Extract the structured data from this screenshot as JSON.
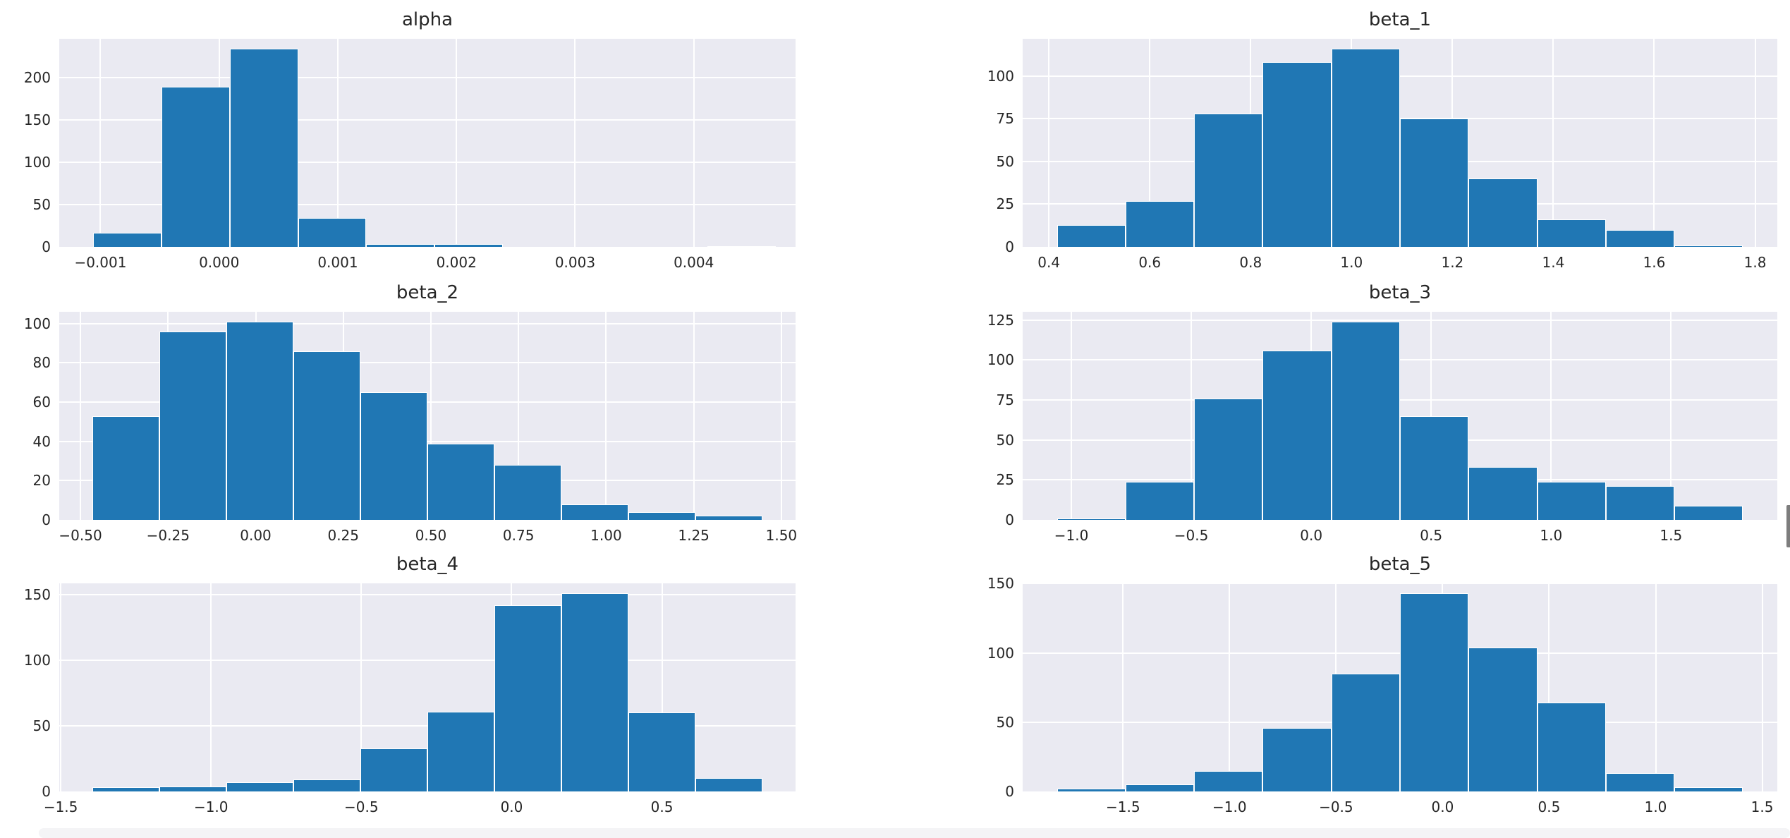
{
  "figure": {
    "page_background": "#ffffff",
    "plot_background": "#eaeaf2",
    "grid_color": "#ffffff",
    "bar_color": "#2077b4",
    "bar_edge_color": "#ffffff",
    "text_color": "#262626"
  },
  "scrollbar": {
    "thumb_color": "#7d7d7d",
    "bottom_strip_color": "#f4f4f6"
  },
  "chart_data": [
    {
      "type": "bar",
      "subtype": "histogram",
      "title": "alpha",
      "bin_start": -0.00106,
      "bin_width": 0.000575,
      "values": [
        17,
        189,
        234,
        34,
        3,
        3,
        0,
        0,
        0,
        1
      ],
      "xlim": [
        -0.0013475,
        0.0048575
      ],
      "ylim": [
        0,
        245.7
      ],
      "xticks": {
        "values": [
          -0.001,
          0.0,
          0.001,
          0.002,
          0.003,
          0.004
        ],
        "labels": [
          "−0.001",
          "0.000",
          "0.001",
          "0.002",
          "0.003",
          "0.004"
        ]
      },
      "yticks": {
        "values": [
          0,
          50,
          100,
          150,
          200
        ],
        "labels": [
          "0",
          "50",
          "100",
          "150",
          "200"
        ]
      },
      "grid": true
    },
    {
      "type": "bar",
      "subtype": "histogram",
      "title": "beta_1",
      "bin_start": 0.416,
      "bin_width": 0.136,
      "values": [
        13,
        27,
        78,
        108,
        116,
        75,
        40,
        16,
        10,
        1
      ],
      "xlim": [
        0.348,
        1.844
      ],
      "ylim": [
        0,
        121.8
      ],
      "xticks": {
        "values": [
          0.4,
          0.6,
          0.8,
          1.0,
          1.2,
          1.4,
          1.6,
          1.8
        ],
        "labels": [
          "0.4",
          "0.6",
          "0.8",
          "1.0",
          "1.2",
          "1.4",
          "1.6",
          "1.8"
        ]
      },
      "yticks": {
        "values": [
          0,
          25,
          50,
          75,
          100
        ],
        "labels": [
          "0",
          "25",
          "50",
          "75",
          "100"
        ]
      },
      "grid": true
    },
    {
      "type": "bar",
      "subtype": "histogram",
      "title": "beta_2",
      "bin_start": -0.465,
      "bin_width": 0.191,
      "values": [
        53,
        96,
        101,
        86,
        65,
        39,
        28,
        8,
        4,
        2
      ],
      "xlim": [
        -0.5605,
        1.5405
      ],
      "ylim": [
        0,
        106.05
      ],
      "xticks": {
        "values": [
          -0.5,
          -0.25,
          0.0,
          0.25,
          0.5,
          0.75,
          1.0,
          1.25,
          1.5
        ],
        "labels": [
          "−0.50",
          "−0.25",
          "0.00",
          "0.25",
          "0.50",
          "0.75",
          "1.00",
          "1.25",
          "1.50"
        ]
      },
      "yticks": {
        "values": [
          0,
          20,
          40,
          60,
          80,
          100
        ],
        "labels": [
          "0",
          "20",
          "40",
          "60",
          "80",
          "100"
        ]
      },
      "grid": true
    },
    {
      "type": "bar",
      "subtype": "histogram",
      "title": "beta_3",
      "bin_start": -1.06,
      "bin_width": 0.286,
      "values": [
        1,
        24,
        76,
        106,
        124,
        65,
        33,
        24,
        21,
        9
      ],
      "xlim": [
        -1.203,
        1.943
      ],
      "ylim": [
        0,
        130.2
      ],
      "xticks": {
        "values": [
          -1.0,
          -0.5,
          0.0,
          0.5,
          1.0,
          1.5
        ],
        "labels": [
          "−1.0",
          "−0.5",
          "0.0",
          "0.5",
          "1.0",
          "1.5"
        ]
      },
      "yticks": {
        "values": [
          0,
          25,
          50,
          75,
          100,
          125
        ],
        "labels": [
          "0",
          "25",
          "50",
          "75",
          "100",
          "125"
        ]
      },
      "grid": true
    },
    {
      "type": "bar",
      "subtype": "histogram",
      "title": "beta_4",
      "bin_start": -1.394,
      "bin_width": 0.2227,
      "values": [
        3,
        4,
        7,
        9,
        33,
        61,
        142,
        151,
        60,
        10
      ],
      "xlim": [
        -1.505,
        0.9444
      ],
      "ylim": [
        0,
        158.55
      ],
      "xticks": {
        "values": [
          -1.5,
          -1.0,
          -0.5,
          0.0,
          0.5
        ],
        "labels": [
          "−1.5",
          "−1.0",
          "−0.5",
          "0.0",
          "0.5"
        ]
      },
      "yticks": {
        "values": [
          0,
          50,
          100,
          150
        ],
        "labels": [
          "0",
          "50",
          "100",
          "150"
        ]
      },
      "grid": true
    },
    {
      "type": "bar",
      "subtype": "histogram",
      "title": "beta_5",
      "bin_start": -1.81,
      "bin_width": 0.322,
      "values": [
        2,
        5,
        15,
        46,
        85,
        143,
        104,
        64,
        13,
        3
      ],
      "xlim": [
        -1.971,
        1.571
      ],
      "ylim": [
        0,
        150.15
      ],
      "xticks": {
        "values": [
          -1.5,
          -1.0,
          -0.5,
          0.0,
          0.5,
          1.0,
          1.5
        ],
        "labels": [
          "−1.5",
          "−1.0",
          "−0.5",
          "0.0",
          "0.5",
          "1.0",
          "1.5"
        ]
      },
      "yticks": {
        "values": [
          0,
          50,
          100,
          150
        ],
        "labels": [
          "0",
          "50",
          "100",
          "150"
        ]
      },
      "grid": true
    }
  ]
}
